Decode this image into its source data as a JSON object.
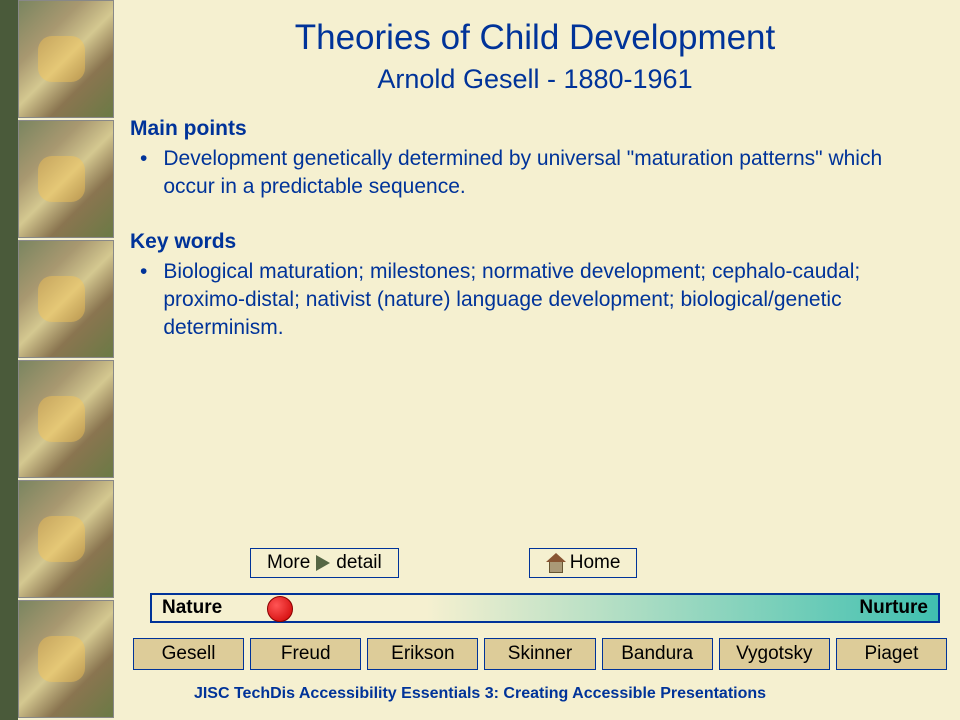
{
  "title": "Theories of Child Development",
  "subtitle": "Arnold Gesell - 1880-1961",
  "sections": {
    "main_points": {
      "heading": "Main points",
      "text": "Development genetically determined by universal \"maturation patterns\" which occur in a predictable sequence."
    },
    "key_words": {
      "heading": "Key words",
      "text": "Biological maturation; milestones; normative development; cephalo-caudal; proximo-distal; nativist (nature) language development; biological/genetic determinism."
    }
  },
  "buttons": {
    "more_pre": "More",
    "more_post": "detail",
    "home": "Home"
  },
  "spectrum": {
    "left": "Nature",
    "right": "Nurture",
    "indicator_position_pct": 15,
    "gradient_start": "#f5f0d0",
    "gradient_end": "#40c0b0",
    "border_color": "#003399",
    "indicator_color": "#cc0000"
  },
  "nav": [
    "Gesell",
    "Freud",
    "Erikson",
    "Skinner",
    "Bandura",
    "Vygotsky",
    "Piaget"
  ],
  "footer": "JISC TechDis Accessibility Essentials 3: Creating Accessible Presentations",
  "styling": {
    "background": "#f5f0d0",
    "accent": "#003399",
    "left_border": "#4a5a3a",
    "nav_button_bg": "#ddcc99",
    "title_fontsize": 35,
    "subtitle_fontsize": 27,
    "body_fontsize": 21
  }
}
